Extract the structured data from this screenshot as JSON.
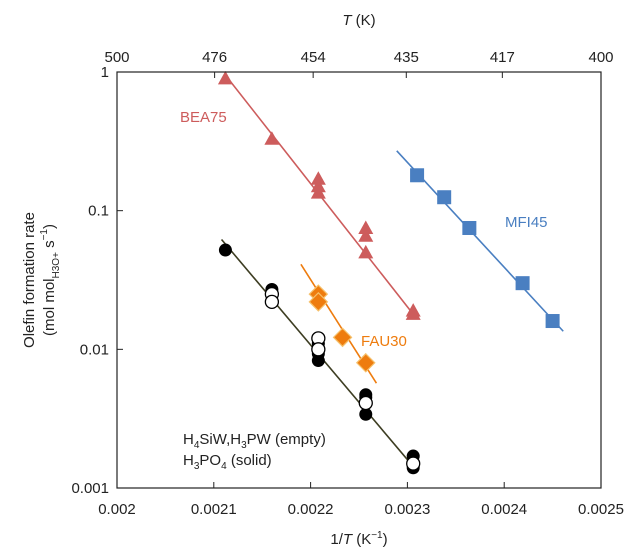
{
  "chart_data": {
    "type": "scatter",
    "y_scale": "log",
    "xlim": [
      0.002,
      0.0025
    ],
    "ylim": [
      0.001,
      1
    ],
    "x_ticks": [
      "0.002",
      "0.0021",
      "0.0022",
      "0.0023",
      "0.0024",
      "0.0025"
    ],
    "y_ticks": [
      {
        "value": 0.001,
        "label": "0.001"
      },
      {
        "value": 0.01,
        "label": "0.01"
      },
      {
        "value": 0.1,
        "label": "0.1"
      },
      {
        "value": 1,
        "label": "1"
      }
    ],
    "top_ticks": [
      {
        "T": 500,
        "label": "500"
      },
      {
        "T": 476,
        "label": "476"
      },
      {
        "T": 454,
        "label": "454"
      },
      {
        "T": 435,
        "label": "435"
      },
      {
        "T": 417,
        "label": "417"
      },
      {
        "T": 400,
        "label": "400"
      }
    ],
    "xlabel": "1/T (K−1)",
    "xlabel_parts": {
      "a": "1/",
      "b": "T",
      "c": " (K",
      "sup": "−1",
      "d": ")"
    },
    "top_label_parts": {
      "a": "T",
      "b": " (K)"
    },
    "ylabel_line1": "Olefin formation rate",
    "ylabel_parts": {
      "a": "(mol mol",
      "sub": "H3O+",
      "b": " s",
      "sup": "−1",
      "c": ")"
    },
    "series": [
      {
        "name": "BEA75",
        "color": "#cd5c5c",
        "marker": "triangle",
        "x": [
          0.002112,
          0.00216,
          0.002208,
          0.002208,
          0.002208,
          0.002257,
          0.002257,
          0.002257,
          0.002306,
          0.002306
        ],
        "y": [
          0.9,
          0.33,
          0.17,
          0.15,
          0.135,
          0.075,
          0.066,
          0.05,
          0.019,
          0.018
        ],
        "fit_x": [
          0.002112,
          0.00231
        ],
        "fit_y": [
          0.95,
          0.0165
        ]
      },
      {
        "name": "MFI45",
        "color": "#4a7fc1",
        "marker": "square",
        "x": [
          0.00231,
          0.002338,
          0.002364,
          0.002419,
          0.00245
        ],
        "y": [
          0.18,
          0.125,
          0.075,
          0.03,
          0.016
        ],
        "fit_x": [
          0.002289,
          0.002461
        ],
        "fit_y": [
          0.27,
          0.0135
        ]
      },
      {
        "name": "FAU30",
        "color": "#ee7c0e",
        "marker": "diamond",
        "x": [
          0.002208,
          0.002208,
          0.002233,
          0.002257
        ],
        "y": [
          0.025,
          0.022,
          0.0122,
          0.008
        ],
        "fit_x": [
          0.00219,
          0.002268
        ],
        "fit_y": [
          0.041,
          0.0057
        ]
      },
      {
        "name": "H4SiW,H3PW (empty)",
        "color": "#000000",
        "marker": "circle-open",
        "x": [
          0.00216,
          0.00216,
          0.002208,
          0.002208,
          0.002257,
          0.002306
        ],
        "y": [
          0.025,
          0.022,
          0.012,
          0.01,
          0.0041,
          0.0015
        ]
      },
      {
        "name": "H3PO4 (solid)",
        "color": "#000000",
        "marker": "circle-filled",
        "x": [
          0.002112,
          0.00216,
          0.00216,
          0.002208,
          0.002208,
          0.002208,
          0.002257,
          0.002257,
          0.002257,
          0.002306,
          0.002306,
          0.002306
        ],
        "y": [
          0.052,
          0.027,
          0.025,
          0.011,
          0.0093,
          0.0083,
          0.0047,
          0.0045,
          0.0034,
          0.0017,
          0.0015,
          0.0014
        ]
      }
    ],
    "black_fit": {
      "color": "#3d3d22",
      "x": [
        0.002108,
        0.002309
      ],
      "y": [
        0.062,
        0.00135
      ]
    }
  },
  "labels": {
    "bea75": "BEA75",
    "mfi45": "MFI45",
    "fau30": "FAU30",
    "h_line1": {
      "a": "H",
      "s1": "4",
      "b": "SiW,H",
      "s2": "3",
      "c": "PW (empty)"
    },
    "h_line2": {
      "a": "H",
      "s1": "3",
      "b": "PO",
      "s2": "4",
      "c": " (solid)"
    }
  }
}
